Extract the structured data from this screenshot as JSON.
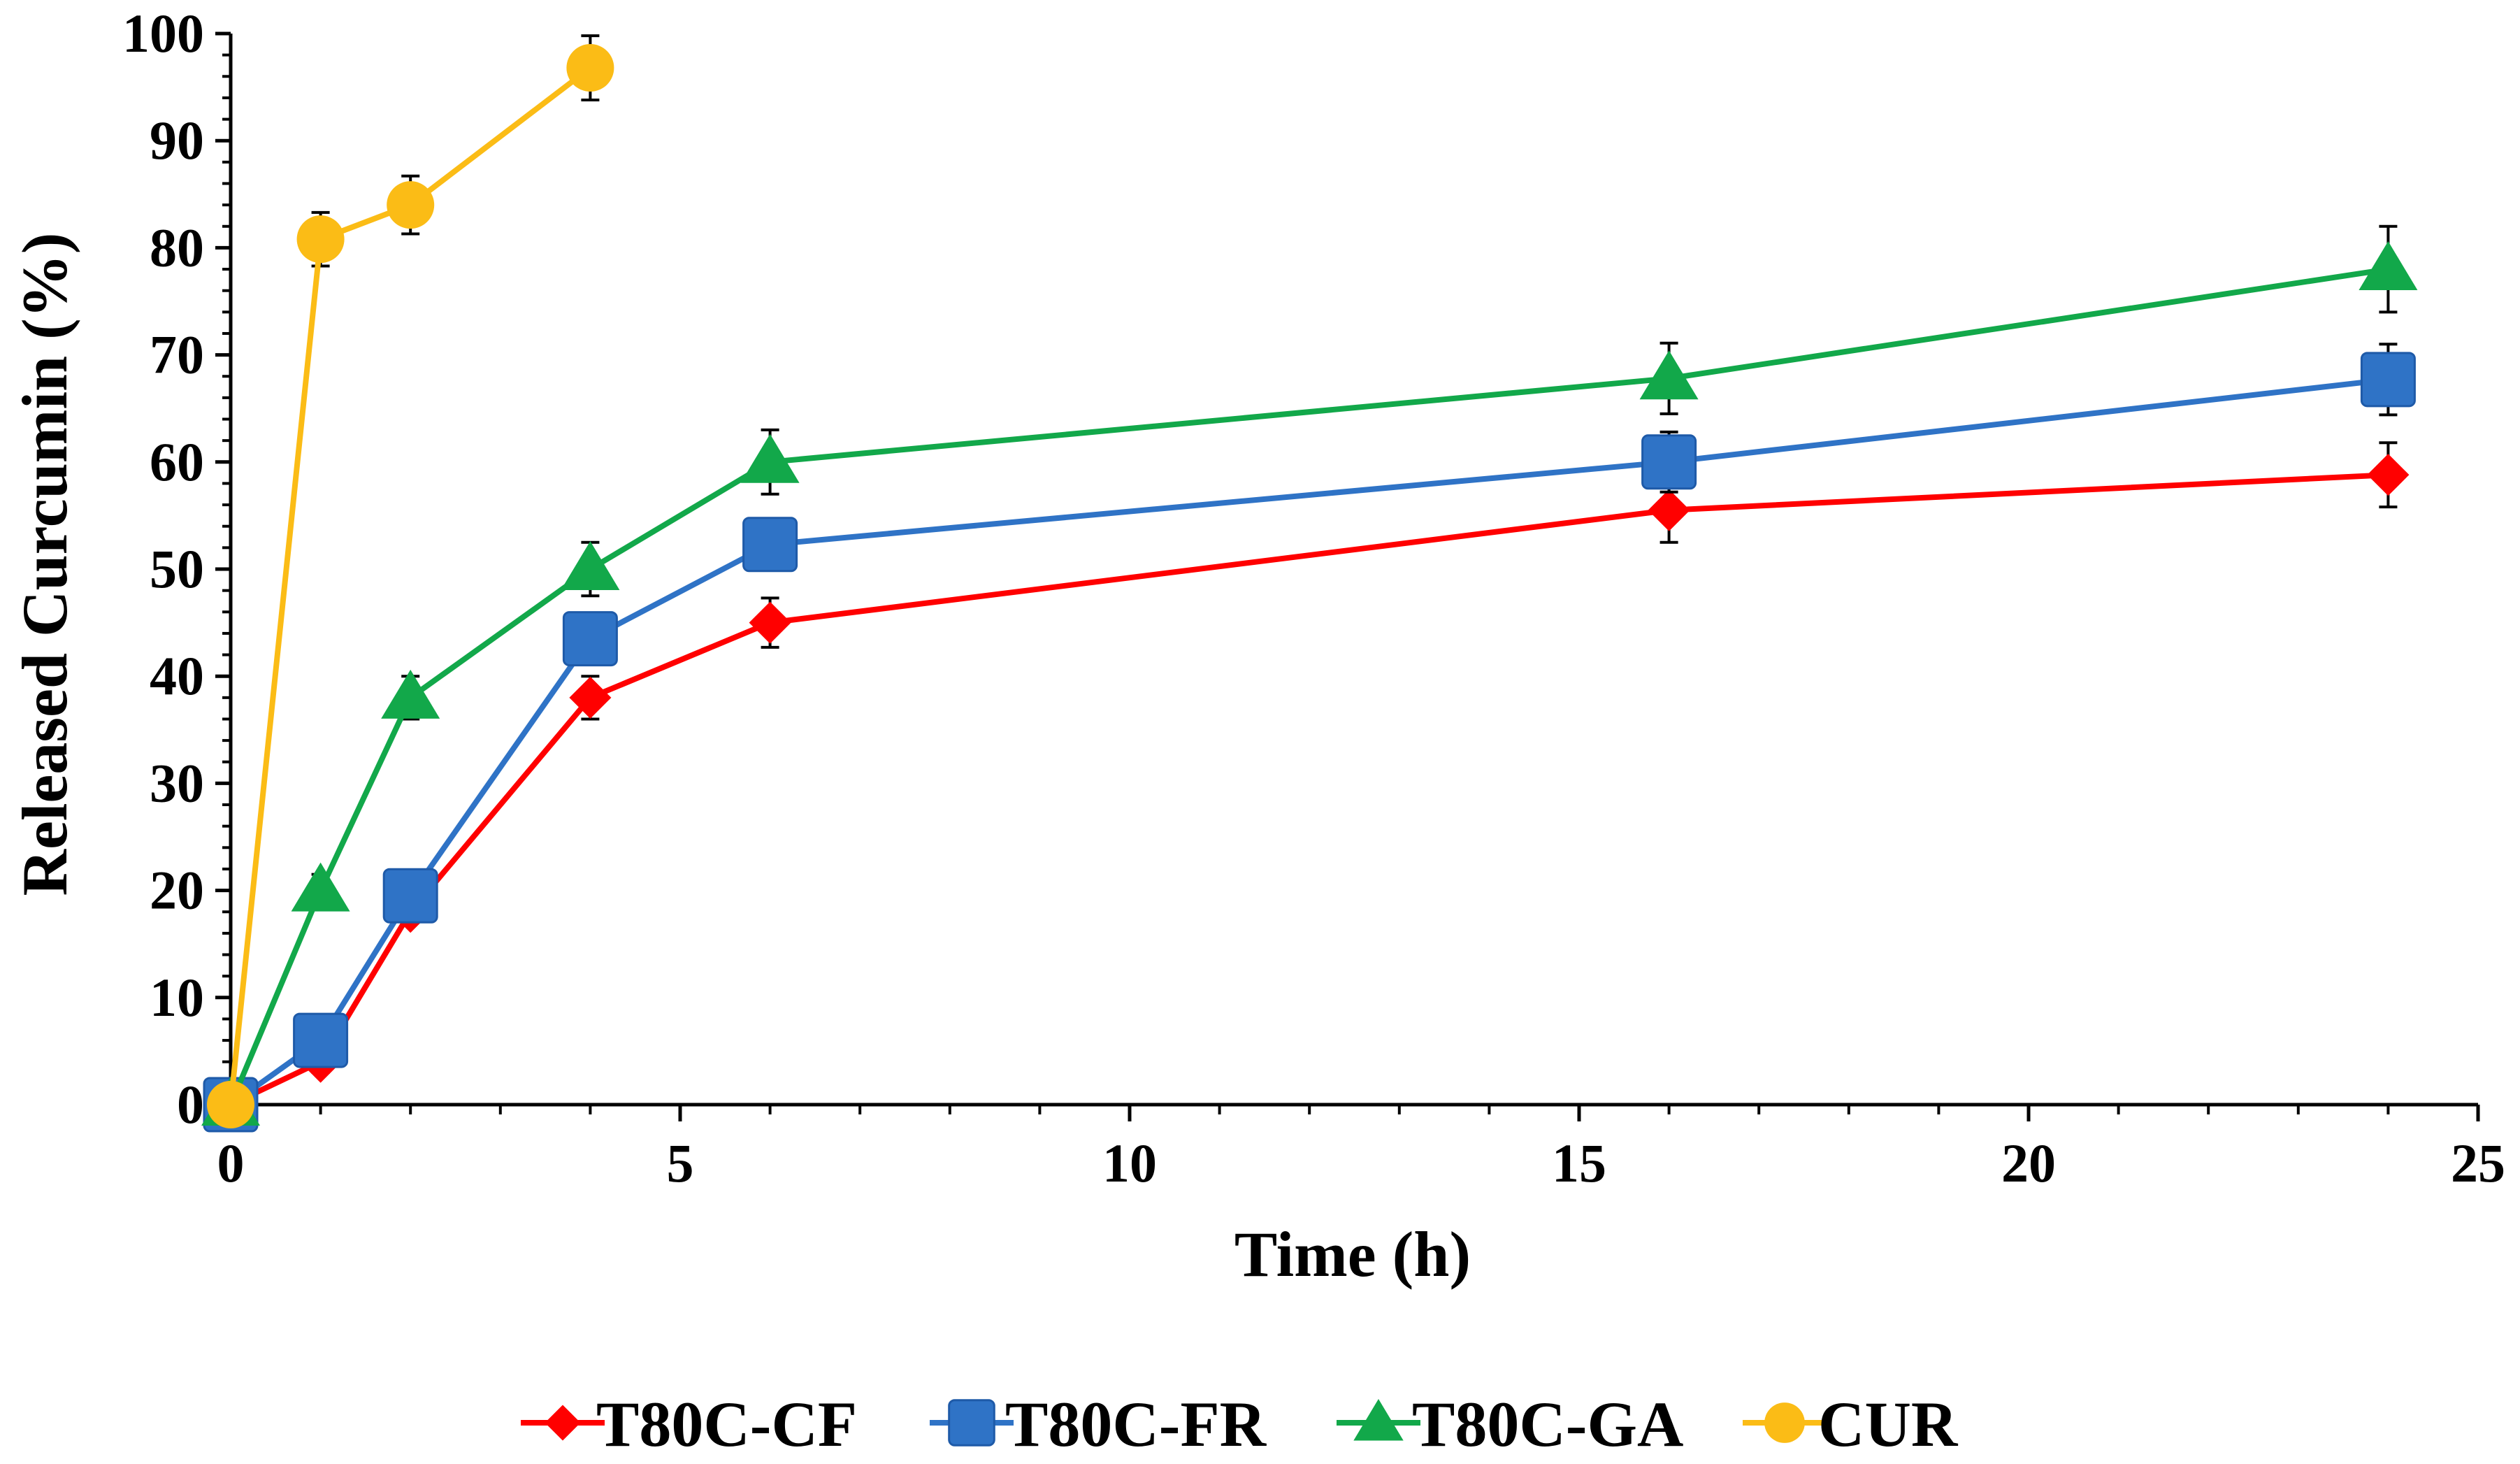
{
  "chart_data": {
    "type": "line",
    "title": "",
    "xlabel": "Time (h)",
    "ylabel": "Released Curcumin (%)",
    "xlim": [
      0,
      25
    ],
    "ylim": [
      0,
      100
    ],
    "x_ticks": [
      0,
      5,
      10,
      15,
      20,
      25
    ],
    "y_ticks": [
      0,
      10,
      20,
      30,
      40,
      50,
      60,
      70,
      80,
      90,
      100
    ],
    "x_tick_labels": [
      "0",
      "5",
      "10",
      "15",
      "20",
      "25"
    ],
    "y_tick_labels": [
      "0",
      "10",
      "20",
      "30",
      "40",
      "50",
      "60",
      "70",
      "80",
      "90",
      "100"
    ],
    "grid": false,
    "legend_position": "bottom",
    "series": [
      {
        "name": "T80C-CF",
        "color": "#ff0000",
        "marker": "diamond",
        "x": [
          0,
          1,
          2,
          4,
          6,
          16,
          24
        ],
        "values": [
          0,
          4,
          18,
          38,
          45,
          55.5,
          58.8
        ],
        "errors": [
          0,
          1,
          1,
          2,
          2.3,
          3,
          3
        ]
      },
      {
        "name": "T80C-FR",
        "color": "#2f73c6",
        "marker": "square",
        "x": [
          0,
          1,
          2,
          4,
          6,
          16,
          24
        ],
        "values": [
          0,
          6,
          19.5,
          43.5,
          52.3,
          60,
          67.7
        ],
        "errors": [
          0,
          1,
          1.2,
          2,
          2.3,
          2.8,
          3.3
        ]
      },
      {
        "name": "T80C-GA",
        "color": "#12a84a",
        "marker": "triangle",
        "x": [
          0,
          1,
          2,
          4,
          6,
          16,
          24
        ],
        "values": [
          0,
          20,
          38,
          50,
          60,
          67.8,
          78
        ],
        "errors": [
          0,
          1.5,
          2,
          2.5,
          3,
          3.3,
          4
        ]
      },
      {
        "name": "CUR",
        "color": "#fbbc16",
        "marker": "circle",
        "x": [
          0,
          1,
          2,
          4
        ],
        "values": [
          0,
          80.8,
          84,
          96.8
        ],
        "errors": [
          0,
          2.5,
          2.7,
          3
        ]
      }
    ]
  }
}
